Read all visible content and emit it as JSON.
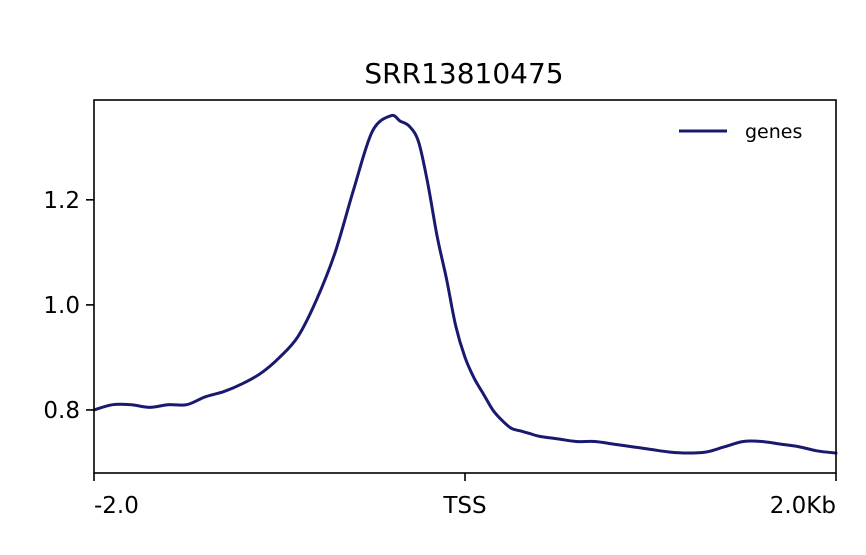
{
  "chart_data": {
    "type": "line",
    "title": "SRR13810475",
    "xlabel": "",
    "ylabel": "",
    "x_ticks": [
      {
        "value": -2.0,
        "label": "-2.0"
      },
      {
        "value": 0,
        "label": "TSS"
      },
      {
        "value": 2.0,
        "label": "2.0Kb"
      }
    ],
    "y_ticks": [
      {
        "value": 0.8,
        "label": "0.8"
      },
      {
        "value": 1.0,
        "label": "1.0"
      },
      {
        "value": 1.2,
        "label": "1.2"
      }
    ],
    "xlim": [
      -2.0,
      2.0
    ],
    "ylim": [
      0.68,
      1.39
    ],
    "grid": false,
    "legend_position": "top-right",
    "series": [
      {
        "name": "genes",
        "color": "#191970",
        "x": [
          -2.0,
          -1.9,
          -1.8,
          -1.7,
          -1.6,
          -1.5,
          -1.4,
          -1.3,
          -1.2,
          -1.1,
          -1.0,
          -0.9,
          -0.8,
          -0.7,
          -0.6,
          -0.5,
          -0.4,
          -0.35,
          -0.3,
          -0.25,
          -0.2,
          -0.15,
          -0.1,
          -0.05,
          0.0,
          0.05,
          0.1,
          0.15,
          0.2,
          0.25,
          0.3,
          0.35,
          0.4,
          0.5,
          0.6,
          0.7,
          0.8,
          0.9,
          1.0,
          1.1,
          1.2,
          1.3,
          1.4,
          1.5,
          1.6,
          1.7,
          1.8,
          1.9,
          2.0
        ],
        "values": [
          0.8,
          0.81,
          0.81,
          0.805,
          0.81,
          0.81,
          0.825,
          0.835,
          0.85,
          0.87,
          0.9,
          0.94,
          1.01,
          1.1,
          1.22,
          1.33,
          1.36,
          1.35,
          1.34,
          1.31,
          1.23,
          1.13,
          1.05,
          0.96,
          0.9,
          0.86,
          0.83,
          0.8,
          0.78,
          0.765,
          0.76,
          0.755,
          0.75,
          0.745,
          0.74,
          0.74,
          0.735,
          0.73,
          0.725,
          0.72,
          0.718,
          0.72,
          0.73,
          0.74,
          0.74,
          0.735,
          0.73,
          0.722,
          0.718
        ]
      }
    ]
  }
}
